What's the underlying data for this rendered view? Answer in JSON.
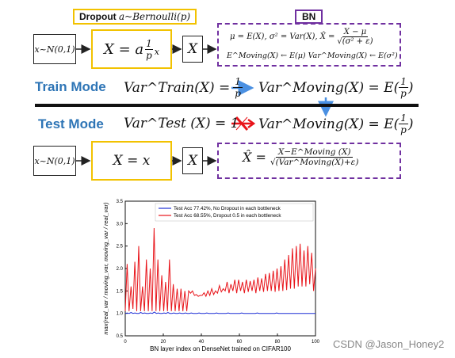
{
  "top": {
    "dropout_label": "Dropout",
    "dropout_dist": "a~Bernoulli(p)",
    "bn_label": "BN",
    "input": "x~N(0,1)",
    "dropout_formula_lhs": "X = a",
    "dropout_frac_num": "1",
    "dropout_frac_den": "p",
    "dropout_formula_rhs": "x",
    "x_box": "X",
    "bn_line1": "μ = E(X), σ² = Var(X), X̂ =",
    "bn_frac_num": "X − μ",
    "bn_frac_den": "√(σ² + ε)",
    "bn_line2": "E^Moving(X) ← E(μ)   Var^Moving(X) ← E(σ²)"
  },
  "train": {
    "label": "Train Mode",
    "var_lhs": "Var^Train(X) =",
    "frac_num": "1",
    "frac_den": "p",
    "var_rhs": "Var^Moving(X) = E(",
    "rhs_num": "1",
    "rhs_den": "p",
    "rhs_close": ")"
  },
  "test": {
    "label": "Test  Mode",
    "var_lhs": "Var^Test (X) = 1",
    "var_rhs": "Var^Moving(X) = E(",
    "rhs_num": "1",
    "rhs_den": "p",
    "rhs_close": ")"
  },
  "bottom": {
    "input": "x~N(0,1)",
    "dropout_formula": "X = x",
    "x_box": "X",
    "bn_lhs": "X̂ =",
    "bn_num": "X−E^Moving (X)",
    "bn_den": "√(Var^Moving(X)+ε)"
  },
  "colors": {
    "accent_blue": "#2e75b6",
    "yellow": "#f2c200",
    "purple": "#7030a0",
    "red": "#e8141a",
    "line_blue": "#1f2fd6"
  },
  "watermark": "CSDN @Jason_Honey2",
  "chart_data": {
    "type": "line",
    "xlabel": "BN layer index on DenseNet trained on CIFAR100",
    "ylabel": "max(real_var / moving_var, moving_var / real_var)",
    "xlim": [
      0,
      100
    ],
    "ylim": [
      0.5,
      3.5
    ],
    "xticks": [
      0,
      20,
      40,
      60,
      80,
      100
    ],
    "yticks": [
      0.5,
      1.0,
      1.5,
      2.0,
      2.5,
      3.0,
      3.5
    ],
    "grid": false,
    "legend_position": "top-right",
    "series": [
      {
        "name": "Test Acc 77.42%, No Dropout in each bottleneck",
        "color": "#1f2fd6",
        "values": [
          1.0,
          1.01,
          1.0,
          1.02,
          1.0,
          1.01,
          1.0,
          1.0,
          1.02,
          1.0,
          1.01,
          1.0,
          1.0,
          1.01,
          1.0,
          1.03,
          1.0,
          1.01,
          1.0,
          1.0,
          1.01,
          1.0,
          1.02,
          1.0,
          1.0,
          1.01,
          1.0,
          1.0,
          1.01,
          1.0,
          1.0,
          1.01,
          1.0,
          1.0,
          1.01,
          1.0,
          1.0,
          1.0,
          1.01,
          1.0,
          1.0,
          1.0,
          1.01,
          1.0,
          1.0,
          1.0,
          1.0,
          1.01,
          1.0,
          1.0,
          1.0,
          1.0,
          1.0,
          1.01,
          1.0,
          1.0,
          1.0,
          1.0,
          1.0,
          1.0,
          1.01,
          1.0,
          1.0,
          1.0,
          1.0,
          1.0,
          1.0,
          1.0,
          1.01,
          1.0,
          1.0,
          1.0,
          1.0,
          1.0,
          1.0,
          1.0,
          1.0,
          1.0,
          1.01,
          1.0,
          1.0,
          1.0,
          1.0,
          1.0,
          1.0,
          1.0,
          1.0,
          1.0,
          1.0,
          1.0,
          1.0,
          1.0,
          1.0,
          1.0,
          1.0,
          1.0,
          1.0,
          1.0,
          1.0
        ]
      },
      {
        "name": "Test Acc 68.55%, Dropout 0.5 in each bottleneck",
        "color": "#e8141a",
        "values": [
          1.05,
          2.1,
          1.05,
          1.6,
          1.1,
          2.15,
          1.05,
          2.5,
          1.05,
          1.6,
          1.05,
          2.2,
          1.05,
          2.0,
          1.05,
          2.9,
          1.05,
          2.2,
          1.05,
          1.85,
          1.05,
          1.7,
          1.05,
          2.2,
          1.05,
          1.65,
          1.05,
          1.55,
          1.05,
          1.55,
          1.05,
          1.5,
          1.05,
          1.5,
          1.45,
          1.5,
          1.4,
          1.42,
          1.38,
          1.4,
          1.4,
          1.46,
          1.38,
          1.5,
          1.4,
          1.55,
          1.42,
          1.5,
          1.45,
          1.62,
          1.48,
          1.55,
          1.5,
          1.7,
          1.45,
          1.65,
          1.5,
          1.75,
          1.45,
          1.75,
          1.5,
          1.7,
          1.45,
          1.75,
          1.48,
          1.72,
          1.5,
          1.75,
          1.45,
          1.8,
          1.5,
          1.78,
          1.48,
          1.88,
          1.5,
          1.9,
          1.5,
          1.95,
          1.48,
          2.0,
          1.5,
          2.05,
          1.5,
          2.2,
          1.52,
          2.3,
          1.55,
          2.45,
          1.55,
          2.5,
          1.6,
          2.55,
          1.6,
          2.4,
          1.6,
          2.5,
          1.65,
          2.35,
          1.5,
          2.0
        ]
      }
    ]
  }
}
